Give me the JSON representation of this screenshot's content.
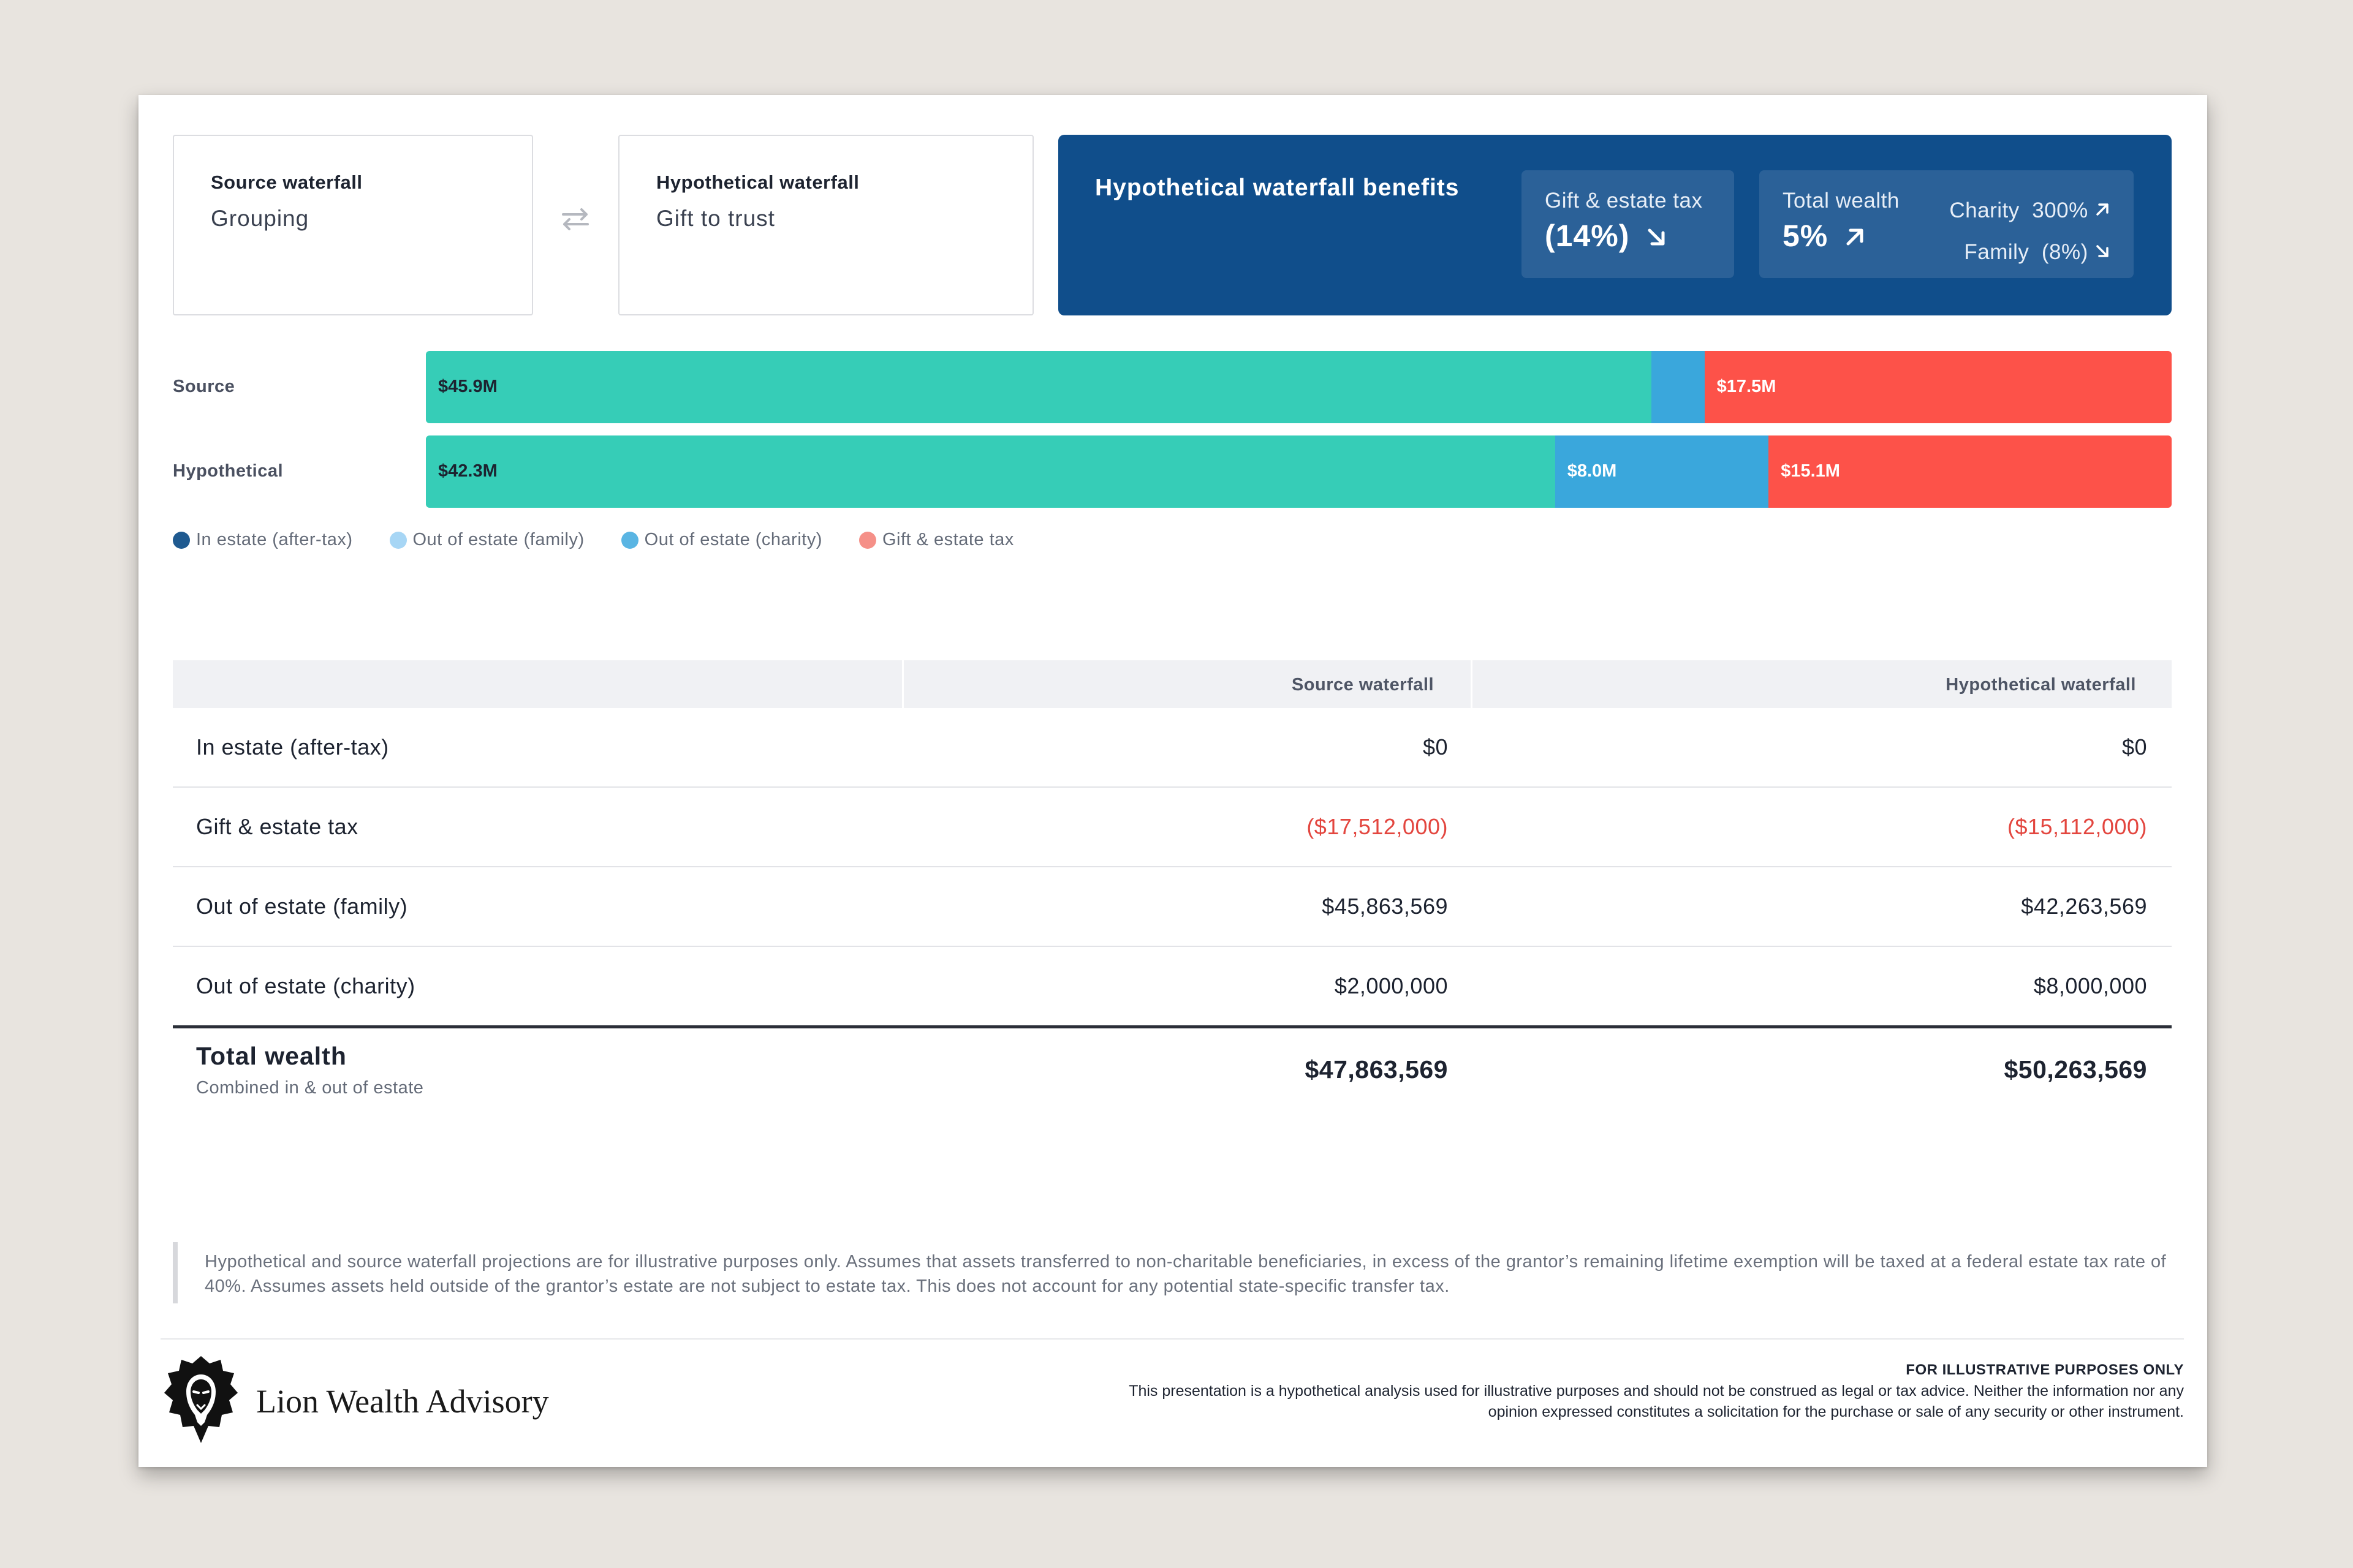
{
  "source_card": {
    "label": "Source waterfall",
    "value": "Grouping"
  },
  "hypo_card": {
    "label": "Hypothetical waterfall",
    "value": "Gift to trust"
  },
  "benefits": {
    "title": "Hypothetical waterfall benefits",
    "gift_tax": {
      "label": "Gift & estate tax",
      "value": "(14%)"
    },
    "total_wealth": {
      "label": "Total wealth",
      "value": "5%"
    },
    "charity": {
      "label": "Charity",
      "value": "300%"
    },
    "family": {
      "label": "Family",
      "value": "(8%)"
    }
  },
  "bars": {
    "source": {
      "label": "Source",
      "segments": [
        {
          "name": "family",
          "value_m": 45.9,
          "label": "$45.9M",
          "color": "#36cdb7"
        },
        {
          "name": "charity",
          "value_m": 2.0,
          "label": "",
          "color": "#3aa7dc"
        },
        {
          "name": "tax",
          "value_m": 17.5,
          "label": "$17.5M",
          "color": "#fd5249"
        }
      ]
    },
    "hypothetical": {
      "label": "Hypothetical",
      "segments": [
        {
          "name": "family",
          "value_m": 42.3,
          "label": "$42.3M",
          "color": "#36cdb7"
        },
        {
          "name": "charity",
          "value_m": 8.0,
          "label": "$8.0M",
          "color": "#3aa7dc"
        },
        {
          "name": "tax",
          "value_m": 15.1,
          "label": "$15.1M",
          "color": "#fd5249"
        }
      ]
    }
  },
  "legend": [
    {
      "label": "In estate (after-tax)",
      "color": "#1f5a90"
    },
    {
      "label": "Out of estate (family)",
      "color": "#a7d6f5"
    },
    {
      "label": "Out of estate (charity)",
      "color": "#5ab5e3"
    },
    {
      "label": "Gift & estate tax",
      "color": "#f59088"
    }
  ],
  "table": {
    "headers": [
      "",
      "Source waterfall",
      "Hypothetical waterfall"
    ],
    "rows": [
      {
        "label": "In estate (after-tax)",
        "source": "$0",
        "hypo": "$0"
      },
      {
        "label": "Gift & estate tax",
        "source": "($17,512,000)",
        "hypo": "($15,112,000)"
      },
      {
        "label": "Out of estate (family)",
        "source": "$45,863,569",
        "hypo": "$42,263,569"
      },
      {
        "label": "Out of estate (charity)",
        "source": "$2,000,000",
        "hypo": "$8,000,000"
      }
    ],
    "total": {
      "label": "Total wealth",
      "sublabel": "Combined in & out of estate",
      "source": "$47,863,569",
      "hypo": "$50,263,569"
    }
  },
  "disclaimer": "Hypothetical and source waterfall projections are for illustrative purposes only. Assumes that assets transferred to non-charitable beneficiaries, in excess of the grantor’s remaining lifetime exemption will be taxed at a federal estate tax rate of 40%. Assumes assets held outside of the grantor’s estate are not subject to estate tax. This does not account for any potential state-specific transfer tax.",
  "footer": {
    "firm": "Lion Wealth Advisory",
    "fine_head": "FOR ILLUSTRATIVE PURPOSES ONLY",
    "fine_text": "This presentation is a hypothetical analysis used for illustrative purposes and should not be construed as legal or tax advice. Neither the information nor any opinion expressed constitutes a solicitation for the purchase or sale of any security or other instrument."
  }
}
